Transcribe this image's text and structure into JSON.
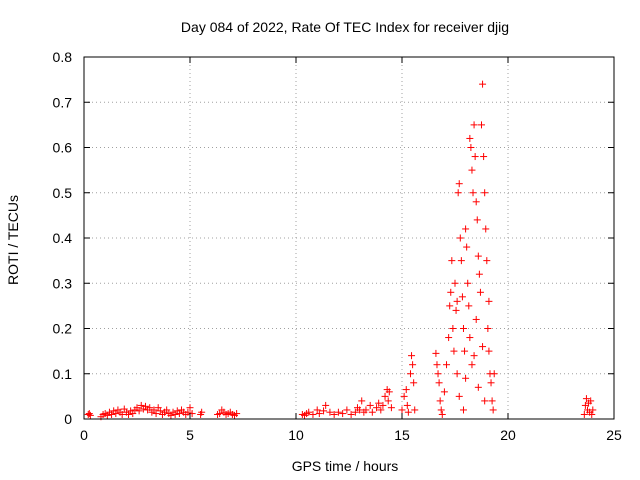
{
  "chart_data": {
    "type": "scatter",
    "title": "Day 084 of 2022, Rate Of TEC Index for receiver djig",
    "xlabel": "GPS time / hours",
    "ylabel": "ROTI / TECUs",
    "xlim": [
      0,
      25
    ],
    "ylim": [
      0,
      0.8
    ],
    "xticks": [
      0,
      5,
      10,
      15,
      20,
      25
    ],
    "xtick_labels": [
      "0",
      "5",
      "10",
      "15",
      "20",
      "25"
    ],
    "yticks": [
      0,
      0.1,
      0.2,
      0.3,
      0.4,
      0.5,
      0.6,
      0.7,
      0.8
    ],
    "ytick_labels": [
      "0",
      "0.1",
      "0.2",
      "0.3",
      "0.4",
      "0.5",
      "0.6",
      "0.7",
      "0.8"
    ],
    "grid": true,
    "marker": "+",
    "series": [
      {
        "name": "ROTI",
        "color": "#ff0000",
        "points": [
          [
            0.2,
            0.01
          ],
          [
            0.25,
            0.012
          ],
          [
            0.3,
            0.008
          ],
          [
            0.8,
            0.005
          ],
          [
            0.9,
            0.01
          ],
          [
            1.0,
            0.012
          ],
          [
            1.1,
            0.008
          ],
          [
            1.2,
            0.015
          ],
          [
            1.3,
            0.01
          ],
          [
            1.4,
            0.018
          ],
          [
            1.5,
            0.012
          ],
          [
            1.6,
            0.02
          ],
          [
            1.7,
            0.015
          ],
          [
            1.8,
            0.01
          ],
          [
            1.9,
            0.022
          ],
          [
            2.0,
            0.015
          ],
          [
            2.1,
            0.01
          ],
          [
            2.2,
            0.018
          ],
          [
            2.3,
            0.012
          ],
          [
            2.4,
            0.02
          ],
          [
            2.5,
            0.025
          ],
          [
            2.6,
            0.018
          ],
          [
            2.7,
            0.03
          ],
          [
            2.8,
            0.022
          ],
          [
            2.9,
            0.028
          ],
          [
            3.0,
            0.02
          ],
          [
            3.1,
            0.025
          ],
          [
            3.2,
            0.015
          ],
          [
            3.3,
            0.02
          ],
          [
            3.4,
            0.012
          ],
          [
            3.5,
            0.025
          ],
          [
            3.6,
            0.018
          ],
          [
            3.7,
            0.01
          ],
          [
            3.8,
            0.015
          ],
          [
            3.9,
            0.02
          ],
          [
            4.0,
            0.012
          ],
          [
            4.1,
            0.008
          ],
          [
            4.2,
            0.015
          ],
          [
            4.3,
            0.01
          ],
          [
            4.4,
            0.018
          ],
          [
            4.5,
            0.012
          ],
          [
            4.6,
            0.02
          ],
          [
            4.7,
            0.015
          ],
          [
            4.8,
            0.01
          ],
          [
            4.9,
            0.015
          ],
          [
            5.0,
            0.025
          ],
          [
            5.1,
            0.012
          ],
          [
            5.5,
            0.01
          ],
          [
            5.55,
            0.015
          ],
          [
            6.3,
            0.01
          ],
          [
            6.4,
            0.012
          ],
          [
            6.5,
            0.02
          ],
          [
            6.6,
            0.015
          ],
          [
            6.7,
            0.01
          ],
          [
            6.8,
            0.012
          ],
          [
            6.9,
            0.015
          ],
          [
            7.0,
            0.01
          ],
          [
            7.1,
            0.008
          ],
          [
            7.2,
            0.012
          ],
          [
            10.3,
            0.01
          ],
          [
            10.4,
            0.008
          ],
          [
            10.5,
            0.012
          ],
          [
            10.6,
            0.015
          ],
          [
            10.8,
            0.01
          ],
          [
            11.0,
            0.02
          ],
          [
            11.1,
            0.012
          ],
          [
            11.3,
            0.018
          ],
          [
            11.4,
            0.03
          ],
          [
            11.6,
            0.015
          ],
          [
            11.8,
            0.01
          ],
          [
            12.0,
            0.015
          ],
          [
            12.2,
            0.012
          ],
          [
            12.4,
            0.02
          ],
          [
            12.6,
            0.01
          ],
          [
            12.8,
            0.015
          ],
          [
            12.9,
            0.025
          ],
          [
            13.0,
            0.02
          ],
          [
            13.1,
            0.04
          ],
          [
            13.2,
            0.015
          ],
          [
            13.3,
            0.02
          ],
          [
            13.5,
            0.03
          ],
          [
            13.6,
            0.015
          ],
          [
            13.8,
            0.025
          ],
          [
            13.9,
            0.035
          ],
          [
            14.0,
            0.02
          ],
          [
            14.1,
            0.03
          ],
          [
            14.2,
            0.05
          ],
          [
            14.3,
            0.065
          ],
          [
            14.35,
            0.04
          ],
          [
            14.4,
            0.06
          ],
          [
            14.5,
            0.025
          ],
          [
            15.0,
            0.02
          ],
          [
            15.1,
            0.05
          ],
          [
            15.2,
            0.065
          ],
          [
            15.25,
            0.03
          ],
          [
            15.3,
            0.015
          ],
          [
            15.4,
            0.1
          ],
          [
            15.45,
            0.14
          ],
          [
            15.5,
            0.12
          ],
          [
            15.55,
            0.08
          ],
          [
            15.6,
            0.02
          ],
          [
            16.6,
            0.145
          ],
          [
            16.65,
            0.12
          ],
          [
            16.7,
            0.1
          ],
          [
            16.75,
            0.08
          ],
          [
            16.8,
            0.04
          ],
          [
            16.85,
            0.02
          ],
          [
            16.9,
            0.01
          ],
          [
            17.0,
            0.06
          ],
          [
            17.1,
            0.12
          ],
          [
            17.2,
            0.18
          ],
          [
            17.25,
            0.25
          ],
          [
            17.3,
            0.28
          ],
          [
            17.35,
            0.35
          ],
          [
            17.4,
            0.2
          ],
          [
            17.45,
            0.15
          ],
          [
            17.5,
            0.3
          ],
          [
            17.55,
            0.24
          ],
          [
            17.6,
            0.1
          ],
          [
            17.65,
            0.5
          ],
          [
            17.7,
            0.52
          ],
          [
            17.75,
            0.4
          ],
          [
            17.8,
            0.35
          ],
          [
            17.85,
            0.27
          ],
          [
            17.9,
            0.2
          ],
          [
            17.95,
            0.15
          ],
          [
            18.0,
            0.42
          ],
          [
            18.05,
            0.38
          ],
          [
            18.1,
            0.3
          ],
          [
            18.15,
            0.25
          ],
          [
            18.2,
            0.62
          ],
          [
            18.25,
            0.6
          ],
          [
            18.3,
            0.55
          ],
          [
            18.35,
            0.5
          ],
          [
            18.4,
            0.65
          ],
          [
            18.45,
            0.58
          ],
          [
            18.5,
            0.48
          ],
          [
            18.55,
            0.44
          ],
          [
            18.6,
            0.36
          ],
          [
            18.65,
            0.32
          ],
          [
            18.7,
            0.28
          ],
          [
            18.75,
            0.65
          ],
          [
            18.8,
            0.74
          ],
          [
            18.85,
            0.58
          ],
          [
            18.9,
            0.5
          ],
          [
            18.95,
            0.42
          ],
          [
            19.0,
            0.35
          ],
          [
            19.05,
            0.2
          ],
          [
            19.1,
            0.15
          ],
          [
            19.15,
            0.1
          ],
          [
            19.2,
            0.08
          ],
          [
            19.25,
            0.04
          ],
          [
            19.3,
            0.02
          ],
          [
            19.35,
            0.1
          ],
          [
            17.7,
            0.05
          ],
          [
            18.0,
            0.09
          ],
          [
            18.3,
            0.12
          ],
          [
            18.6,
            0.07
          ],
          [
            18.9,
            0.04
          ],
          [
            17.9,
            0.02
          ],
          [
            18.2,
            0.18
          ],
          [
            18.5,
            0.22
          ],
          [
            18.8,
            0.16
          ],
          [
            19.1,
            0.26
          ],
          [
            17.6,
            0.26
          ],
          [
            18.4,
            0.14
          ],
          [
            23.6,
            0.01
          ],
          [
            23.65,
            0.03
          ],
          [
            23.7,
            0.045
          ],
          [
            23.75,
            0.02
          ],
          [
            23.8,
            0.035
          ],
          [
            23.85,
            0.015
          ],
          [
            23.9,
            0.04
          ],
          [
            23.95,
            0.01
          ],
          [
            24.0,
            0.02
          ]
        ]
      }
    ]
  }
}
